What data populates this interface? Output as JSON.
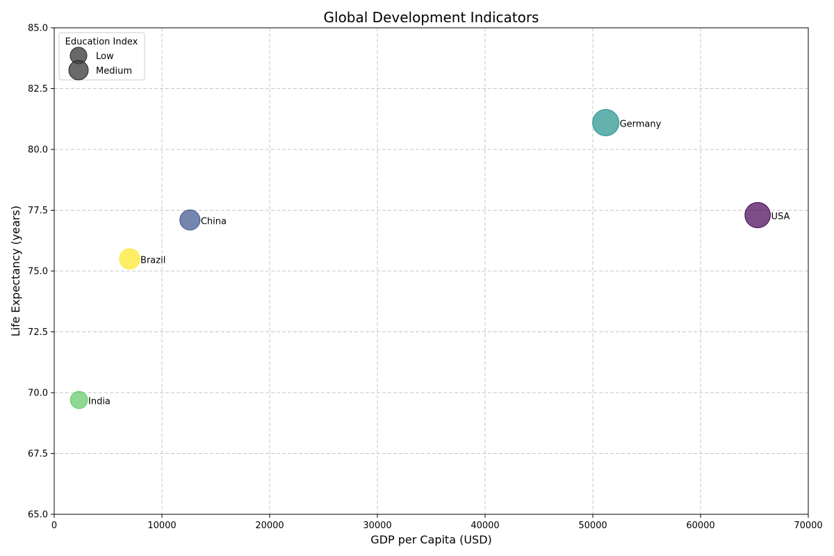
{
  "chart_data": {
    "type": "scatter",
    "title": "Global Development Indicators",
    "xlabel": "GDP per Capita (USD)",
    "ylabel": "Life Expectancy (years)",
    "xlim": [
      0,
      70000
    ],
    "ylim": [
      65,
      85
    ],
    "x_ticks": [
      0,
      10000,
      20000,
      30000,
      40000,
      50000,
      60000,
      70000
    ],
    "y_ticks": [
      "65.0",
      "67.5",
      "70.0",
      "72.5",
      "75.0",
      "77.5",
      "80.0",
      "82.5",
      "85.0"
    ],
    "grid": true,
    "points": [
      {
        "label": "USA",
        "x": 65300,
        "y": 77.3,
        "education_index": 0.9,
        "color": "#440154"
      },
      {
        "label": "China",
        "x": 12600,
        "y": 77.1,
        "education_index": 0.68,
        "color": "#3b528b"
      },
      {
        "label": "Germany",
        "x": 51200,
        "y": 81.1,
        "education_index": 0.94,
        "color": "#21918c"
      },
      {
        "label": "India",
        "x": 2300,
        "y": 69.7,
        "education_index": 0.55,
        "color": "#5ec962"
      },
      {
        "label": "Brazil",
        "x": 7000,
        "y": 75.5,
        "education_index": 0.68,
        "color": "#fde725"
      }
    ],
    "legend": {
      "title": "Education Index",
      "position": "top-left",
      "entries": [
        {
          "label": "Low",
          "color": "#444444"
        },
        {
          "label": "Medium",
          "color": "#444444"
        }
      ]
    }
  }
}
